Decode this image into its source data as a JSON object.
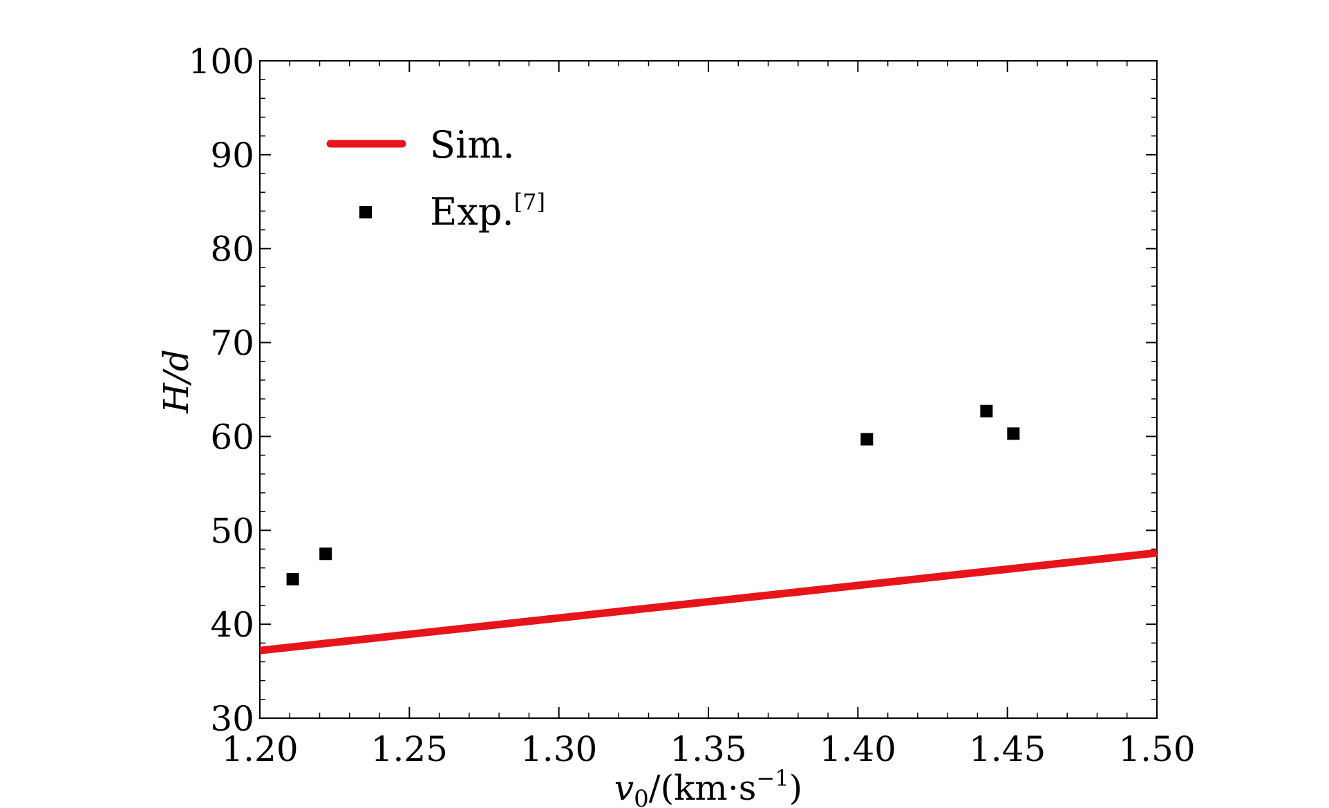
{
  "chart_data": {
    "type": "scatter",
    "xlabel": "v0/(km·s−1)",
    "xlabel_parts": {
      "main": "v",
      "sub": "0",
      "rest": "/(km·s",
      "sup": "−1",
      "end": ")"
    },
    "ylabel": "H/d",
    "xlim": [
      1.2,
      1.5
    ],
    "ylim": [
      30,
      100
    ],
    "x_ticks": [
      "1.20",
      "1.25",
      "1.30",
      "1.35",
      "1.40",
      "1.45",
      "1.50"
    ],
    "y_ticks": [
      "30",
      "40",
      "50",
      "60",
      "70",
      "80",
      "90",
      "100"
    ],
    "legend_position": "upper-left",
    "series": [
      {
        "name": "Sim.",
        "kind": "line",
        "color": "#e8141b",
        "x": [
          1.2,
          1.5
        ],
        "y": [
          37.2,
          47.6
        ]
      },
      {
        "name": "Exp.",
        "name_sup": "[7]",
        "kind": "marker",
        "marker": "square",
        "color": "#000000",
        "x": [
          1.211,
          1.222,
          1.403,
          1.443,
          1.452
        ],
        "y": [
          44.8,
          47.5,
          59.7,
          62.7,
          60.3
        ]
      }
    ]
  }
}
